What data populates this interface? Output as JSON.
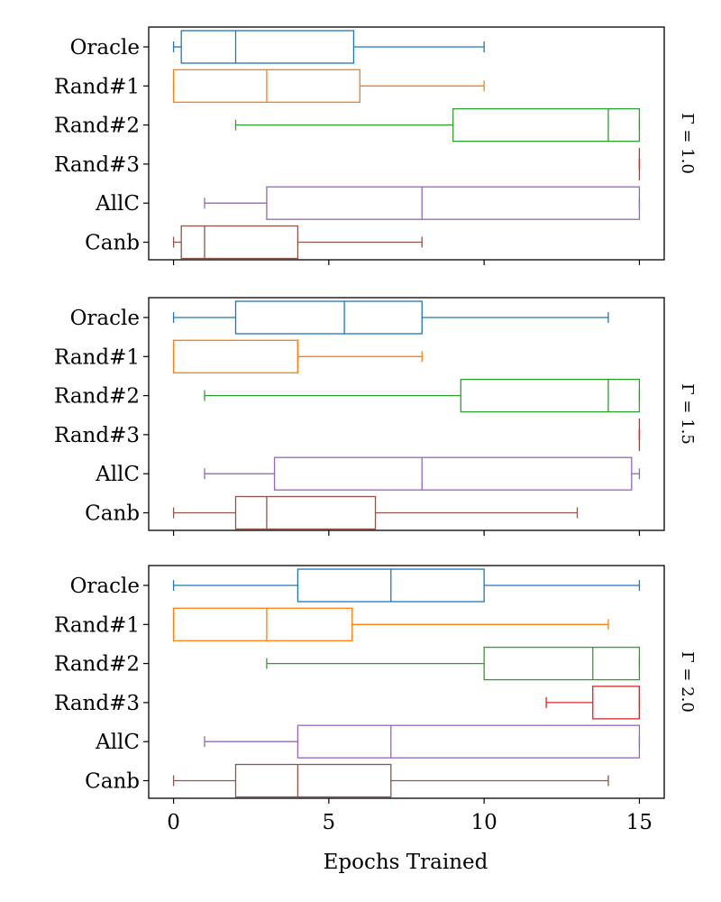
{
  "chart_data": {
    "type": "boxplot",
    "orientation": "horizontal",
    "xlabel": "Epochs Trained",
    "xlim": [
      -0.8,
      15.8
    ],
    "xticks": [
      0,
      5,
      10,
      15
    ],
    "categories": [
      "Oracle",
      "Rand#1",
      "Rand#2",
      "Rand#3",
      "AllC",
      "Canb"
    ],
    "colors": {
      "Oracle": "#1f77b4",
      "Rand#1": "#ff7f0e",
      "Rand#2": "#2ca02c",
      "Rand#3": "#d62728",
      "AllC": "#9467bd",
      "Canb": "#8c564b"
    },
    "panels": [
      {
        "label": "Γ = 1.0",
        "boxes": [
          {
            "name": "Oracle",
            "whislo": 0,
            "q1": 0.25,
            "med": 2,
            "q3": 5.8,
            "whishi": 10
          },
          {
            "name": "Rand#1",
            "whislo": 0,
            "q1": 0,
            "med": 3,
            "q3": 6,
            "whishi": 10
          },
          {
            "name": "Rand#2",
            "whislo": 2,
            "q1": 9,
            "med": 14,
            "q3": 15,
            "whishi": 15
          },
          {
            "name": "Rand#3",
            "whislo": 15,
            "q1": 15,
            "med": 15,
            "q3": 15,
            "whishi": 15
          },
          {
            "name": "AllC",
            "whislo": 1,
            "q1": 3,
            "med": 8,
            "q3": 15,
            "whishi": 15
          },
          {
            "name": "Canb",
            "whislo": 0,
            "q1": 0.25,
            "med": 1,
            "q3": 4,
            "whishi": 8
          }
        ]
      },
      {
        "label": "Γ = 1.5",
        "boxes": [
          {
            "name": "Oracle",
            "whislo": 0,
            "q1": 2,
            "med": 5.5,
            "q3": 8,
            "whishi": 14
          },
          {
            "name": "Rand#1",
            "whislo": 0,
            "q1": 0,
            "med": 4,
            "q3": 4,
            "whishi": 8
          },
          {
            "name": "Rand#2",
            "whislo": 1,
            "q1": 9.25,
            "med": 14,
            "q3": 15,
            "whishi": 15
          },
          {
            "name": "Rand#3",
            "whislo": 15,
            "q1": 15,
            "med": 15,
            "q3": 15,
            "whishi": 15
          },
          {
            "name": "AllC",
            "whislo": 1,
            "q1": 3.25,
            "med": 8,
            "q3": 14.75,
            "whishi": 15
          },
          {
            "name": "Canb",
            "whislo": 0,
            "q1": 2,
            "med": 3,
            "q3": 6.5,
            "whishi": 13
          }
        ]
      },
      {
        "label": "Γ = 2.0",
        "boxes": [
          {
            "name": "Oracle",
            "whislo": 0,
            "q1": 4,
            "med": 7,
            "q3": 10,
            "whishi": 15
          },
          {
            "name": "Rand#1",
            "whislo": 0,
            "q1": 0,
            "med": 3,
            "q3": 5.75,
            "whishi": 14
          },
          {
            "name": "Rand#2",
            "whislo": 3,
            "q1": 10,
            "med": 13.5,
            "q3": 15,
            "whishi": 15
          },
          {
            "name": "Rand#3",
            "whislo": 12,
            "q1": 13.5,
            "med": 15,
            "q3": 15,
            "whishi": 15
          },
          {
            "name": "AllC",
            "whislo": 1,
            "q1": 4,
            "med": 7,
            "q3": 15,
            "whishi": 15
          },
          {
            "name": "Canb",
            "whislo": 0,
            "q1": 2,
            "med": 4,
            "q3": 7,
            "whishi": 14
          }
        ]
      }
    ]
  }
}
